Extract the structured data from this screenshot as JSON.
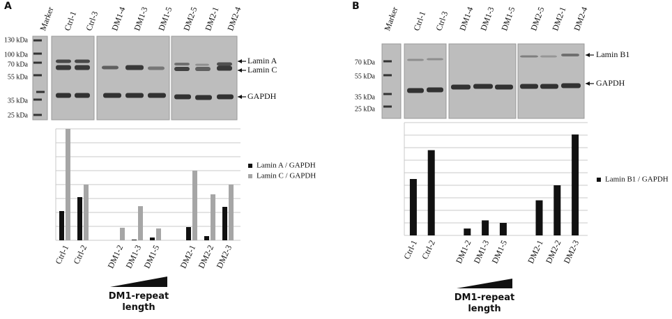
{
  "panel_labels": [
    "A",
    "B"
  ],
  "blots": [
    {
      "lanes": [
        "Marker",
        "Ctrl-1",
        "Ctrl-3",
        "DM1-4",
        "DM1-3",
        "DM1-5",
        "DM2-5",
        "DM2-1",
        "DM2-4"
      ],
      "markers": [
        "130 kDa",
        "100 kDa",
        "70 kDa",
        "55 kDa",
        "35 kDa",
        "25 kDa"
      ],
      "proteins": [
        "Lamin A",
        "Lamin C",
        "GAPDH"
      ]
    },
    {
      "lanes": [
        "Marker",
        "Ctrl-1",
        "Ctrl-3",
        "DM1-4",
        "DM1-3",
        "DM1-5",
        "DM2-5",
        "DM2-1",
        "DM2-4"
      ],
      "markers": [
        "70 kDa",
        "55 kDa",
        "35 kDa",
        "25 kDa"
      ],
      "proteins": [
        "Lamin B1",
        "GAPDH"
      ]
    }
  ],
  "chart_data": [
    {
      "type": "bar",
      "categories": [
        "Ctrl-1",
        "Ctrl-2",
        null,
        "DM1-2",
        "DM1-3",
        "DM1-5",
        null,
        "DM2-1",
        "DM2-2",
        "DM2-3"
      ],
      "series": [
        {
          "name": "Lamin A / GAPDH",
          "color": "#111111",
          "values": [
            2.1,
            3.1,
            null,
            0,
            0.05,
            0.2,
            null,
            0.95,
            0.3,
            2.4
          ]
        },
        {
          "name": "Lamin C / GAPDH",
          "color": "#a6a6a6",
          "values": [
            8,
            4,
            null,
            0.9,
            2.45,
            0.85,
            null,
            5,
            3.3,
            4
          ]
        }
      ],
      "ylim": [
        0,
        8
      ],
      "yticks": [
        0,
        1,
        2,
        3,
        4,
        5,
        6,
        7,
        8
      ],
      "grid": true,
      "legend": "right",
      "annotation": "DM1-repeat length"
    },
    {
      "type": "bar",
      "categories": [
        "Ctrl-1",
        "Ctrl-2",
        null,
        "DM1-2",
        "DM1-3",
        "DM1-5",
        null,
        "DM2-1",
        "DM2-2",
        "DM2-3"
      ],
      "series": [
        {
          "name": "Lamin B1 / GAPDH",
          "color": "#111111",
          "values": [
            4.5,
            6.8,
            null,
            0.55,
            1.2,
            1.0,
            null,
            2.8,
            4.0,
            8.05
          ]
        }
      ],
      "ylim": [
        0,
        9
      ],
      "yticks": [
        0,
        1,
        2,
        3,
        4,
        5,
        6,
        7,
        8,
        9
      ],
      "grid": true,
      "legend": "right",
      "annotation": "DM1-repeat length"
    }
  ]
}
